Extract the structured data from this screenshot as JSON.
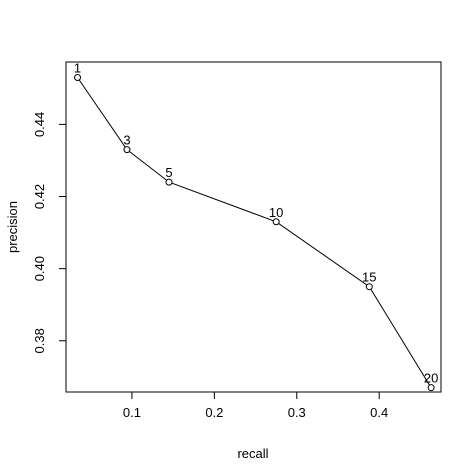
{
  "chart_data": {
    "type": "line",
    "title": "",
    "xlabel": "recall",
    "ylabel": "precision",
    "xlim": [
      0.02,
      0.475
    ],
    "ylim": [
      0.3658,
      0.4573
    ],
    "xticks": [
      0.1,
      0.2,
      0.3,
      0.4
    ],
    "xtick_labels": [
      "0.1",
      "0.2",
      "0.3",
      "0.4"
    ],
    "yticks": [
      0.38,
      0.4,
      0.42,
      0.44
    ],
    "ytick_labels": [
      "0.38",
      "0.40",
      "0.42",
      "0.44"
    ],
    "grid": false,
    "series": [
      {
        "points": [
          {
            "label": "1",
            "x": 0.034,
            "y": 0.453
          },
          {
            "label": "3",
            "x": 0.094,
            "y": 0.433
          },
          {
            "label": "5",
            "x": 0.145,
            "y": 0.424
          },
          {
            "label": "10",
            "x": 0.275,
            "y": 0.413
          },
          {
            "label": "15",
            "x": 0.388,
            "y": 0.395
          },
          {
            "label": "20",
            "x": 0.463,
            "y": 0.367
          }
        ]
      }
    ]
  }
}
